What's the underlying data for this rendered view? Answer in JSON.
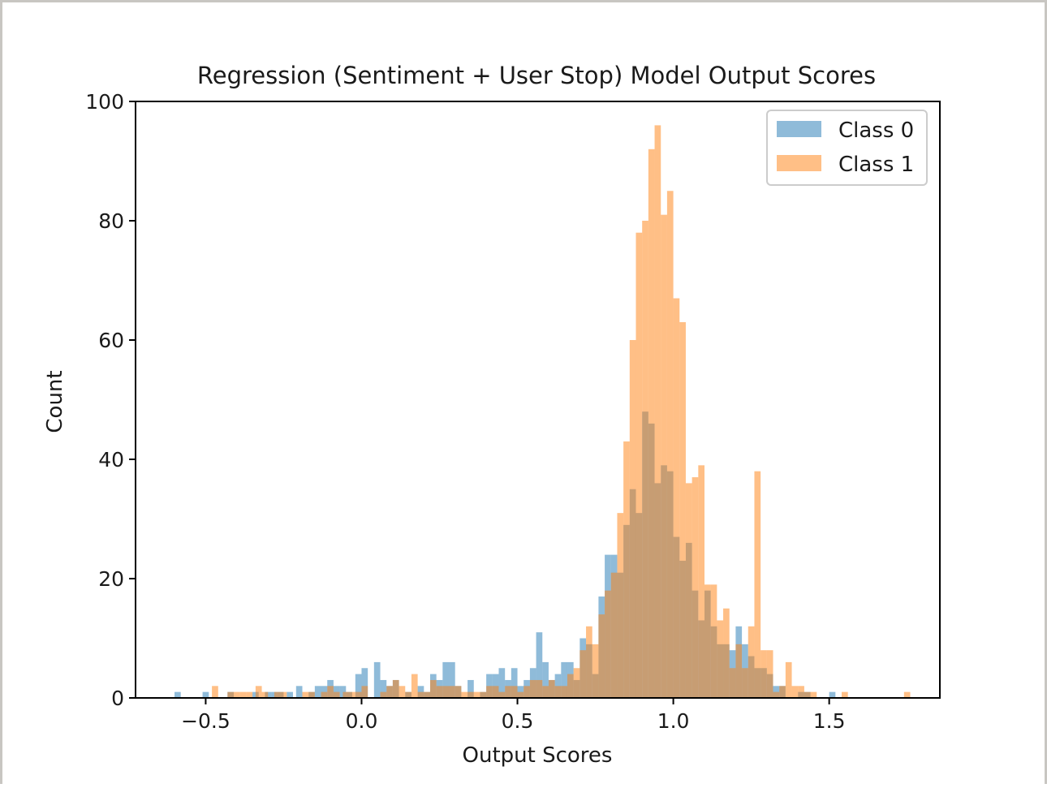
{
  "chart_data": {
    "type": "histogram",
    "title": "Regression (Sentiment + User Stop) Model Output Scores",
    "xlabel": "Output Scores",
    "ylabel": "Count",
    "xlim": [
      -0.725,
      1.855
    ],
    "ylim": [
      0,
      100
    ],
    "bin_width": 0.02,
    "x_ticks": [
      -0.5,
      0.0,
      0.5,
      1.0,
      1.5
    ],
    "x_tick_labels": [
      "−0.5",
      "0.0",
      "0.5",
      "1.0",
      "1.5"
    ],
    "y_ticks": [
      0,
      20,
      40,
      60,
      80,
      100
    ],
    "y_tick_labels": [
      "0",
      "20",
      "40",
      "60",
      "80",
      "100"
    ],
    "grid": false,
    "legend_position": "top-right",
    "series": [
      {
        "name": "Class 0",
        "color": "#1f77b4",
        "opacity": 0.5,
        "bins": [
          [
            -0.6,
            1
          ],
          [
            -0.51,
            1
          ],
          [
            -0.43,
            1
          ],
          [
            -0.35,
            1
          ],
          [
            -0.31,
            1
          ],
          [
            -0.29,
            1
          ],
          [
            -0.27,
            1
          ],
          [
            -0.24,
            1
          ],
          [
            -0.21,
            2
          ],
          [
            -0.17,
            1
          ],
          [
            -0.15,
            2
          ],
          [
            -0.13,
            2
          ],
          [
            -0.11,
            3
          ],
          [
            -0.09,
            2
          ],
          [
            -0.07,
            2
          ],
          [
            -0.05,
            1
          ],
          [
            -0.02,
            4
          ],
          [
            0.0,
            5
          ],
          [
            0.04,
            6
          ],
          [
            0.06,
            3
          ],
          [
            0.08,
            2
          ],
          [
            0.1,
            3
          ],
          [
            0.14,
            1
          ],
          [
            0.18,
            2
          ],
          [
            0.2,
            1
          ],
          [
            0.22,
            4
          ],
          [
            0.24,
            3
          ],
          [
            0.26,
            6
          ],
          [
            0.28,
            6
          ],
          [
            0.3,
            2
          ],
          [
            0.34,
            3
          ],
          [
            0.38,
            1
          ],
          [
            0.4,
            4
          ],
          [
            0.42,
            4
          ],
          [
            0.44,
            5
          ],
          [
            0.46,
            3
          ],
          [
            0.48,
            5
          ],
          [
            0.5,
            2
          ],
          [
            0.52,
            3
          ],
          [
            0.54,
            5
          ],
          [
            0.56,
            11
          ],
          [
            0.58,
            6
          ],
          [
            0.6,
            3
          ],
          [
            0.62,
            4
          ],
          [
            0.64,
            6
          ],
          [
            0.66,
            6
          ],
          [
            0.68,
            3
          ],
          [
            0.7,
            10
          ],
          [
            0.72,
            9
          ],
          [
            0.74,
            4
          ],
          [
            0.76,
            17
          ],
          [
            0.78,
            24
          ],
          [
            0.8,
            24
          ],
          [
            0.82,
            21
          ],
          [
            0.84,
            29
          ],
          [
            0.86,
            35
          ],
          [
            0.88,
            31
          ],
          [
            0.9,
            48
          ],
          [
            0.92,
            46
          ],
          [
            0.94,
            36
          ],
          [
            0.96,
            39
          ],
          [
            0.98,
            38
          ],
          [
            1.0,
            27
          ],
          [
            1.02,
            23
          ],
          [
            1.04,
            26
          ],
          [
            1.06,
            18
          ],
          [
            1.08,
            13
          ],
          [
            1.1,
            18
          ],
          [
            1.12,
            12
          ],
          [
            1.14,
            9
          ],
          [
            1.16,
            9
          ],
          [
            1.18,
            8
          ],
          [
            1.2,
            12
          ],
          [
            1.22,
            9
          ],
          [
            1.24,
            7
          ],
          [
            1.26,
            5
          ],
          [
            1.28,
            5
          ],
          [
            1.3,
            4
          ],
          [
            1.32,
            2
          ],
          [
            1.34,
            2
          ],
          [
            1.4,
            1
          ],
          [
            1.42,
            1
          ],
          [
            1.5,
            1
          ]
        ]
      },
      {
        "name": "Class 1",
        "color": "#ff7f0e",
        "opacity": 0.5,
        "bins": [
          [
            -0.48,
            2
          ],
          [
            -0.43,
            1
          ],
          [
            -0.41,
            1
          ],
          [
            -0.39,
            1
          ],
          [
            -0.37,
            1
          ],
          [
            -0.34,
            2
          ],
          [
            -0.32,
            1
          ],
          [
            -0.28,
            1
          ],
          [
            -0.26,
            1
          ],
          [
            -0.19,
            1
          ],
          [
            -0.17,
            1
          ],
          [
            -0.13,
            1
          ],
          [
            -0.11,
            2
          ],
          [
            -0.09,
            1
          ],
          [
            -0.06,
            1
          ],
          [
            -0.04,
            1
          ],
          [
            -0.02,
            1
          ],
          [
            0.0,
            2
          ],
          [
            0.06,
            1
          ],
          [
            0.08,
            2
          ],
          [
            0.1,
            3
          ],
          [
            0.12,
            2
          ],
          [
            0.14,
            1
          ],
          [
            0.16,
            4
          ],
          [
            0.18,
            1
          ],
          [
            0.2,
            1
          ],
          [
            0.22,
            3
          ],
          [
            0.24,
            2
          ],
          [
            0.26,
            2
          ],
          [
            0.28,
            2
          ],
          [
            0.3,
            2
          ],
          [
            0.32,
            1
          ],
          [
            0.34,
            1
          ],
          [
            0.36,
            1
          ],
          [
            0.38,
            1
          ],
          [
            0.4,
            2
          ],
          [
            0.42,
            2
          ],
          [
            0.44,
            1
          ],
          [
            0.46,
            2
          ],
          [
            0.48,
            2
          ],
          [
            0.5,
            1
          ],
          [
            0.52,
            2
          ],
          [
            0.54,
            3
          ],
          [
            0.56,
            3
          ],
          [
            0.58,
            2
          ],
          [
            0.6,
            3
          ],
          [
            0.62,
            2
          ],
          [
            0.64,
            2
          ],
          [
            0.66,
            4
          ],
          [
            0.68,
            5
          ],
          [
            0.7,
            8
          ],
          [
            0.72,
            12
          ],
          [
            0.74,
            9
          ],
          [
            0.76,
            14
          ],
          [
            0.78,
            18
          ],
          [
            0.8,
            21
          ],
          [
            0.82,
            31
          ],
          [
            0.84,
            43
          ],
          [
            0.86,
            60
          ],
          [
            0.88,
            78
          ],
          [
            0.9,
            80
          ],
          [
            0.92,
            92
          ],
          [
            0.94,
            96
          ],
          [
            0.96,
            81
          ],
          [
            0.98,
            85
          ],
          [
            1.0,
            67
          ],
          [
            1.02,
            63
          ],
          [
            1.04,
            36
          ],
          [
            1.06,
            37
          ],
          [
            1.08,
            39
          ],
          [
            1.1,
            19
          ],
          [
            1.12,
            19
          ],
          [
            1.14,
            13
          ],
          [
            1.16,
            15
          ],
          [
            1.18,
            5
          ],
          [
            1.2,
            9
          ],
          [
            1.22,
            5
          ],
          [
            1.24,
            12
          ],
          [
            1.26,
            38
          ],
          [
            1.28,
            8
          ],
          [
            1.3,
            8
          ],
          [
            1.32,
            1
          ],
          [
            1.34,
            2
          ],
          [
            1.36,
            6
          ],
          [
            1.38,
            2
          ],
          [
            1.4,
            2
          ],
          [
            1.42,
            1
          ],
          [
            1.44,
            1
          ],
          [
            1.54,
            1
          ],
          [
            1.74,
            1
          ]
        ]
      }
    ]
  }
}
